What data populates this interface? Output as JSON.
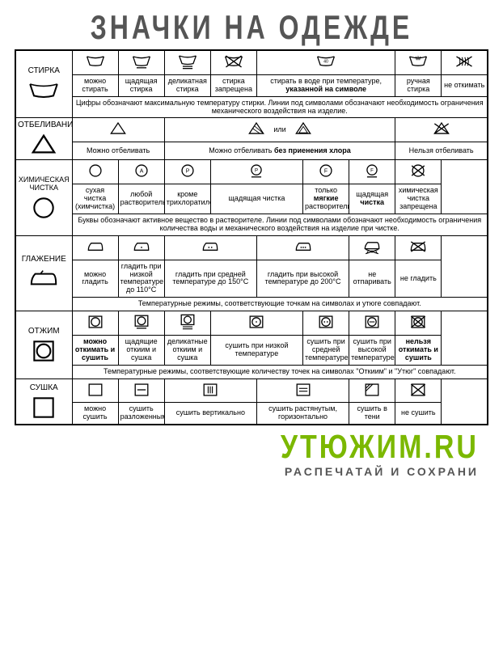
{
  "title": "ЗНАЧКИ НА ОДЕЖДЕ",
  "footer_url": "УТЮЖИМ.RU",
  "footer_sub": "РАСПЕЧАТАЙ И СОХРАНИ",
  "colors": {
    "title": "#555555",
    "url": "#7bb800",
    "border": "#000000"
  },
  "sections": {
    "wash": {
      "header": "СТИРКА",
      "cells": [
        {
          "label": "можно стирать"
        },
        {
          "label": "щадящая стирка"
        },
        {
          "label": "деликатная стирка"
        },
        {
          "label": "стирка запрещена"
        },
        {
          "label_html": "стирать в воде при температуре,\n<b>указанной на символе</b>",
          "wide": true
        },
        {
          "label": "ручная стирка"
        },
        {
          "label": "не откимать"
        }
      ],
      "note": "Цифры обозначают максимальную температуру стирки.\nЛинии под символами обозначают необходимость\nограничения механического воздействия на изделие."
    },
    "bleach": {
      "header": "ОТБЕЛИВАНИЕ",
      "cells": [
        {
          "label": "Можно отбеливать"
        },
        {
          "label_html": "Можно отбеливать <b>без приенения хлора</b>",
          "mid": "или",
          "wide": true
        },
        {
          "label": "Нельзя отбеливать"
        }
      ]
    },
    "dryclean": {
      "header": "ХИМИЧЕСКАЯ ЧИСТКА",
      "cells": [
        {
          "label": "сухая чистка (химчистка)"
        },
        {
          "label": "любой растворитель"
        },
        {
          "label": "кроме трихлоратилена"
        },
        {
          "label": "щадящая чистка"
        },
        {
          "label_html": "только <b>мягкие</b> растворители"
        },
        {
          "label_html": "щадящая\n<b>чистка</b>"
        },
        {
          "label": "химическая чистка запрещена"
        }
      ],
      "note": "Буквы обозначают активное вещество в растворителе.\nЛинии под символами обозначают необходимость ограничения\nколичества воды и механического воздействия на изделие при чистке."
    },
    "iron": {
      "header": "ГЛАЖЕНИЕ",
      "cells": [
        {
          "label": "можно гладить"
        },
        {
          "label": "гладить при низкой температуре до 110°C"
        },
        {
          "label": "гладить при средней температуре до 150°C"
        },
        {
          "label": "гладить при высокой температуре до 200°C"
        },
        {
          "label": "не отпаривать"
        },
        {
          "label": "не гладить"
        }
      ],
      "note": "Температурные режимы, соответствующие точкам на символах и утюге совпадают."
    },
    "spin": {
      "header": "ОТЖИМ",
      "cells": [
        {
          "label_html": "<b>можно откимать и сушить</b>"
        },
        {
          "label": "щадящие откиим и сушка"
        },
        {
          "label": "деликатные откиим и сушка"
        },
        {
          "label": "сушить при низкой температуре"
        },
        {
          "label": "сушить при средней температуре"
        },
        {
          "label": "сушить при высокой температуре"
        },
        {
          "label_html": "<b>нельзя откимать и сушить</b>"
        }
      ],
      "note": "Температурные режимы, соответствующие количеству точек на символах \"Откиим\" и \"Утюг\" совпадают."
    },
    "dry": {
      "header": "СУШКА",
      "cells": [
        {
          "label": "можно сушить"
        },
        {
          "label": "сушить разложенным"
        },
        {
          "label": "сушить вертикально"
        },
        {
          "label": "сушить растянутым, горизонтально"
        },
        {
          "label": "сушить в тени"
        },
        {
          "label": "не сушить"
        }
      ]
    }
  }
}
